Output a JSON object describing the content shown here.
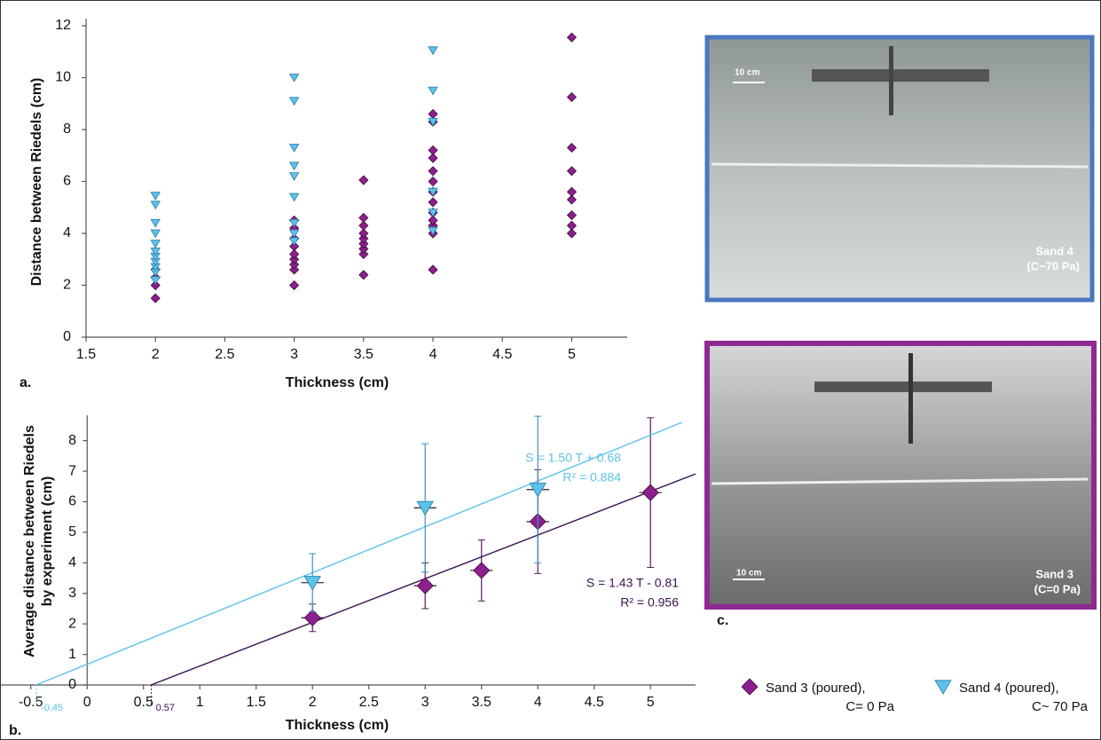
{
  "chart_data": [
    {
      "type": "scatter",
      "panel_label": "a.",
      "xlabel": "Thickness (cm)",
      "ylabel": "Distance between Riedels (cm)",
      "xlim": [
        1.5,
        5.4
      ],
      "ylim": [
        0,
        12
      ],
      "xticks": [
        1.5,
        2,
        2.5,
        3,
        3.5,
        4,
        4.5,
        5
      ],
      "yticks": [
        0,
        2,
        4,
        6,
        8,
        10,
        12
      ],
      "series": [
        {
          "name": "Sand 3 (poured),",
          "note": "C= 0 Pa",
          "color": "#8e1f8e",
          "marker": "diamond",
          "x": [
            2,
            2,
            2,
            2,
            3,
            3,
            3,
            3,
            3,
            3,
            3,
            3,
            3,
            3.5,
            3.5,
            3.5,
            3.5,
            3.5,
            3.5,
            3.5,
            3.5,
            3.5,
            4,
            4,
            4,
            4,
            4,
            4,
            4,
            4,
            4,
            4,
            4,
            4,
            4,
            5,
            5,
            5,
            5,
            5,
            5,
            5,
            5,
            5
          ],
          "y": [
            1.5,
            2.0,
            2.3,
            2.6,
            2.0,
            2.6,
            2.8,
            3.0,
            3.2,
            3.5,
            3.8,
            4.2,
            4.5,
            2.4,
            3.2,
            3.4,
            3.6,
            3.8,
            4.0,
            4.3,
            4.6,
            6.05,
            2.6,
            4.0,
            4.3,
            4.5,
            4.8,
            5.2,
            5.6,
            6.0,
            6.4,
            6.9,
            7.2,
            8.3,
            8.6,
            4.0,
            4.3,
            4.7,
            5.3,
            5.6,
            6.4,
            7.3,
            9.25,
            11.55
          ]
        },
        {
          "name": "Sand 4 (poured),",
          "note": "C~ 70 Pa",
          "color": "#5bc3ea",
          "marker": "triangle",
          "x": [
            2,
            2,
            2,
            2,
            2,
            2,
            2,
            2,
            2,
            2,
            2,
            3,
            3,
            3,
            3,
            3,
            3,
            3,
            3,
            3,
            4,
            4,
            4,
            4,
            4,
            4
          ],
          "y": [
            2.2,
            2.5,
            2.7,
            2.9,
            3.1,
            3.3,
            3.6,
            4.0,
            4.4,
            5.1,
            5.45,
            3.7,
            4.0,
            4.4,
            5.4,
            6.2,
            6.6,
            7.3,
            9.1,
            10.0,
            4.1,
            4.8,
            5.6,
            8.3,
            9.5,
            11.05
          ]
        }
      ]
    },
    {
      "type": "scatter",
      "panel_label": "b.",
      "xlabel": "Thickness (cm)",
      "ylabel": "Average distance between Riedels by experiment (cm)",
      "xlim": [
        -0.75,
        5.4
      ],
      "ylim": [
        0,
        8.6
      ],
      "xticks": [
        -0.5,
        0,
        0.5,
        1,
        1.5,
        2,
        2.5,
        3,
        3.5,
        4,
        4.5,
        5
      ],
      "yticks": [
        0,
        1,
        2,
        3,
        4,
        5,
        6,
        7,
        8
      ],
      "series": [
        {
          "name": "Sand 3 (poured),",
          "color": "#8e1f8e",
          "line_color": "#3b1052",
          "marker": "diamond",
          "x": [
            2,
            3,
            3.5,
            4,
            5
          ],
          "y": [
            2.2,
            3.25,
            3.75,
            5.35,
            6.3
          ],
          "errors": [
            0.45,
            0.75,
            1.0,
            1.7,
            2.45
          ],
          "xerrors": [
            0.1,
            0.1,
            0.1,
            0.1,
            0.1
          ],
          "trend": {
            "slope": 1.43,
            "intercept": -0.81,
            "label": "S = 1.43 T - 0.81",
            "r2_label": "R² = 0.956",
            "x_intercept": 0.57
          }
        },
        {
          "name": "Sand 4 (poured),",
          "color": "#5bc3ea",
          "line_color": "#5bc3ea",
          "marker": "triangle",
          "x": [
            2,
            3,
            4
          ],
          "y": [
            3.35,
            5.8,
            6.4
          ],
          "errors": [
            0.95,
            2.1,
            2.4
          ],
          "xerrors": [
            0.1,
            0.1,
            0.1
          ],
          "trend": {
            "slope": 1.5,
            "intercept": 0.68,
            "label": "S = 1.50 T + 0.68",
            "r2_label": "R² = 0.884",
            "x_intercept": -0.45
          }
        }
      ]
    }
  ],
  "panel_c": {
    "label": "c.",
    "top": {
      "scale": "10 cm",
      "name": "Sand 4",
      "cohesion": "(C~70 Pa)"
    },
    "bottom": {
      "scale": "10 cm",
      "name": "Sand 3",
      "cohesion": "(C=0 Pa)"
    }
  }
}
